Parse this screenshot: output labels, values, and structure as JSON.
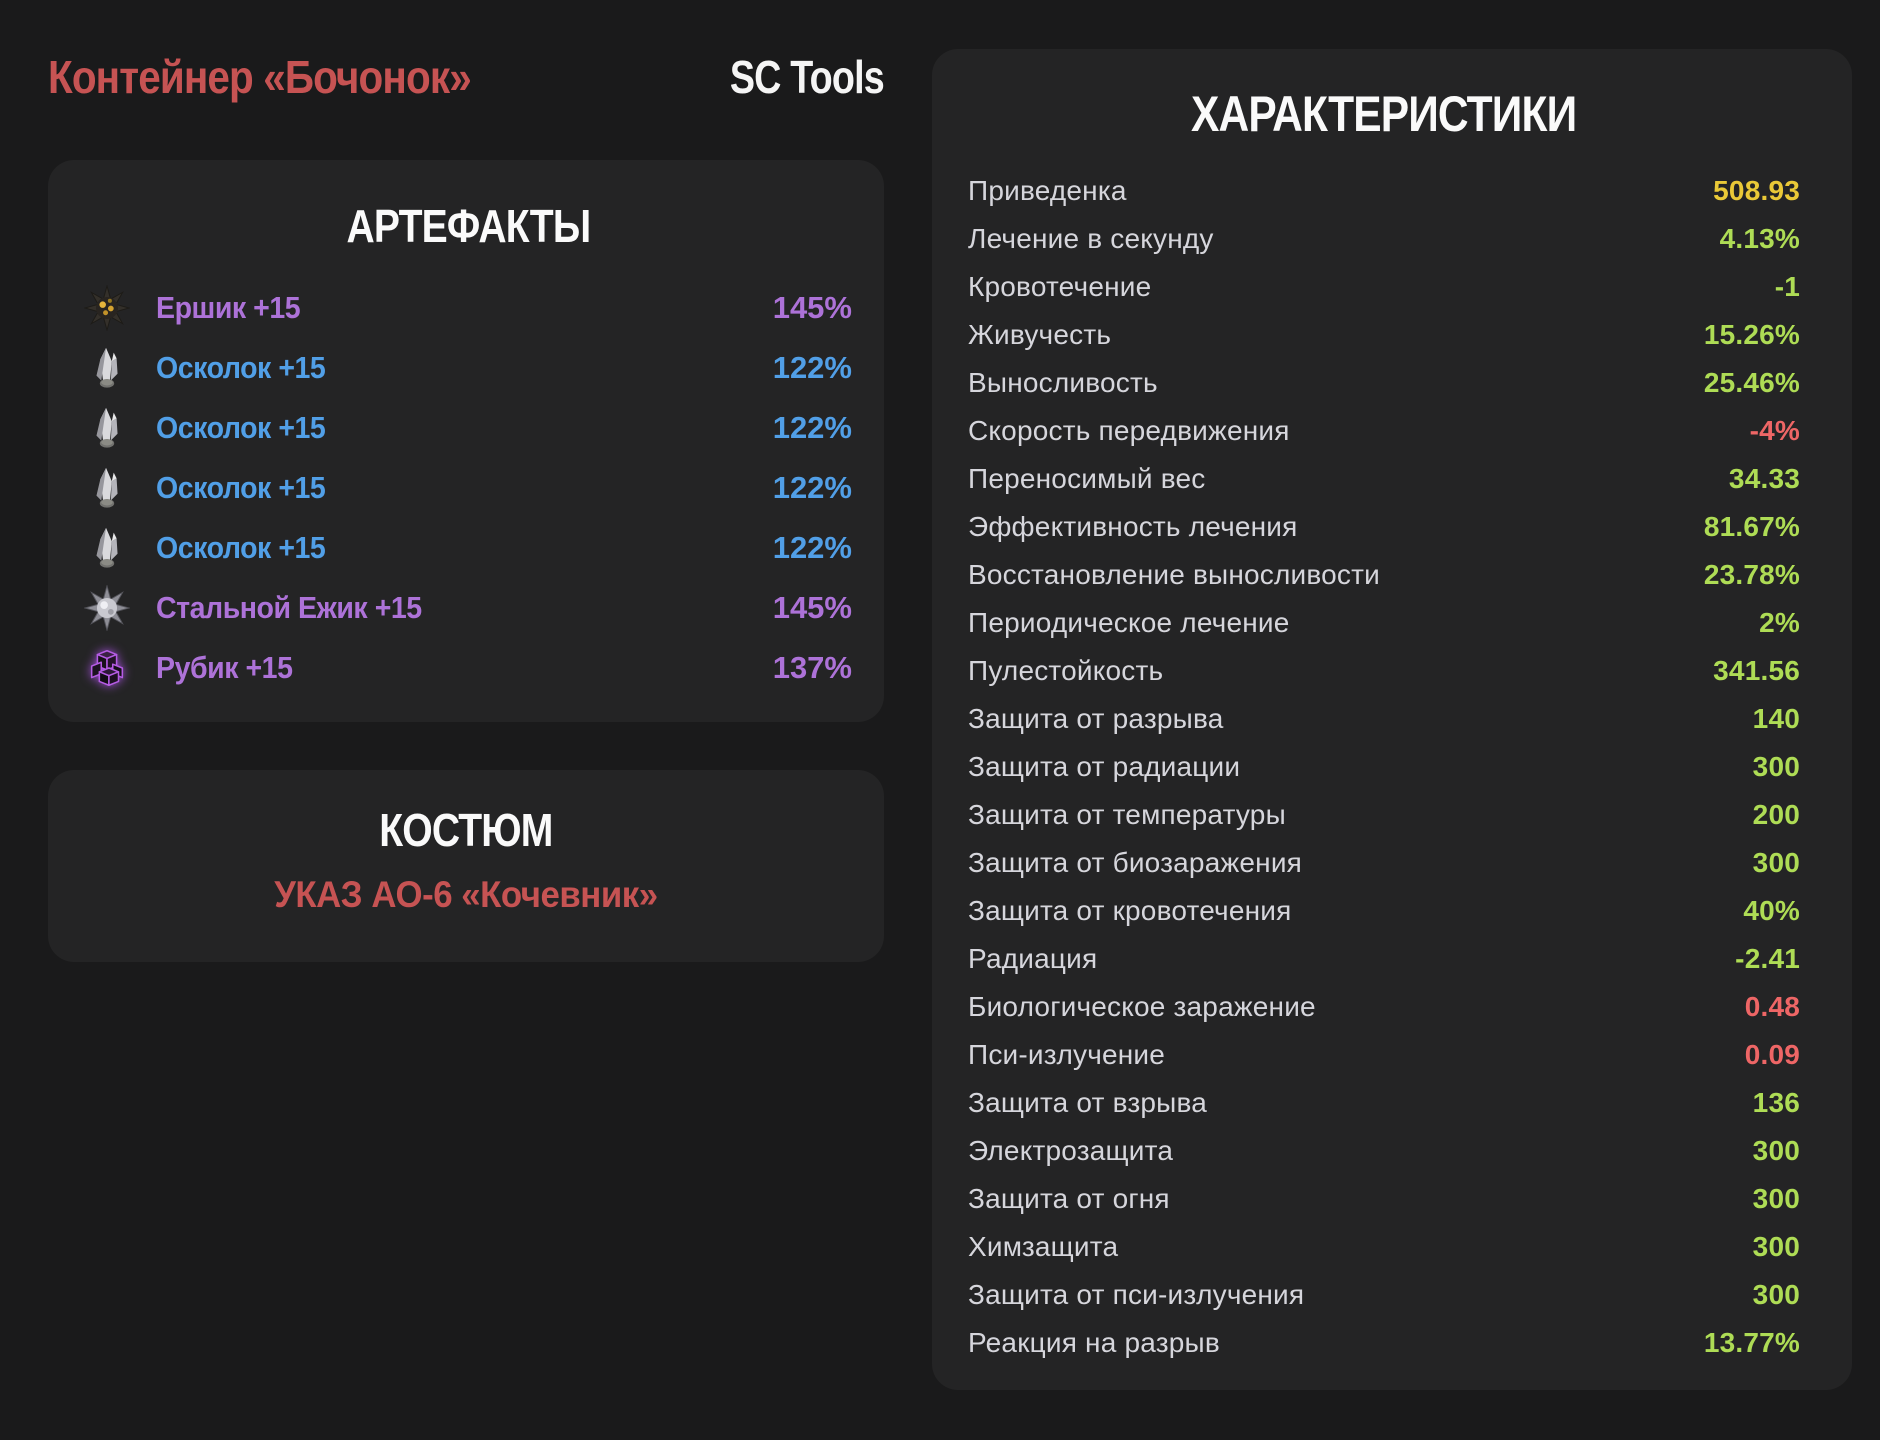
{
  "header": {
    "title": "Контейнер «Бочонок»",
    "brand": "SC Tools"
  },
  "artifacts_panel": {
    "title": "АРТЕФАКТЫ",
    "items": [
      {
        "name": "Ершик +15",
        "value": "145%",
        "rarity": "purple",
        "icon": "ershik"
      },
      {
        "name": "Осколок +15",
        "value": "122%",
        "rarity": "blue",
        "icon": "oskolok"
      },
      {
        "name": "Осколок +15",
        "value": "122%",
        "rarity": "blue",
        "icon": "oskolok"
      },
      {
        "name": "Осколок +15",
        "value": "122%",
        "rarity": "blue",
        "icon": "oskolok"
      },
      {
        "name": "Осколок +15",
        "value": "122%",
        "rarity": "blue",
        "icon": "oskolok"
      },
      {
        "name": "Стальной Ежик +15",
        "value": "145%",
        "rarity": "purple",
        "icon": "steel-hedgehog"
      },
      {
        "name": "Рубик +15",
        "value": "137%",
        "rarity": "purple",
        "icon": "rubik"
      }
    ]
  },
  "suit_panel": {
    "title": "КОСТЮМ",
    "name": "УКАЗ АО-6 «Кочевник»"
  },
  "stats_panel": {
    "title": "ХАРАКТЕРИСТИКИ",
    "rows": [
      {
        "label": "Приведенка",
        "value": "508.93",
        "color": "gold"
      },
      {
        "label": "Лечение в секунду",
        "value": "4.13%",
        "color": "green"
      },
      {
        "label": "Кровотечение",
        "value": "-1",
        "color": "green"
      },
      {
        "label": "Живучесть",
        "value": "15.26%",
        "color": "green"
      },
      {
        "label": "Выносливость",
        "value": "25.46%",
        "color": "green"
      },
      {
        "label": "Скорость передвижения",
        "value": "-4%",
        "color": "red"
      },
      {
        "label": "Переносимый вес",
        "value": "34.33",
        "color": "green"
      },
      {
        "label": "Эффективность лечения",
        "value": "81.67%",
        "color": "green"
      },
      {
        "label": "Восстановление выносливости",
        "value": "23.78%",
        "color": "green"
      },
      {
        "label": "Периодическое лечение",
        "value": "2%",
        "color": "green"
      },
      {
        "label": "Пулестойкость",
        "value": "341.56",
        "color": "green"
      },
      {
        "label": "Защита от разрыва",
        "value": "140",
        "color": "green"
      },
      {
        "label": "Защита от радиации",
        "value": "300",
        "color": "green"
      },
      {
        "label": "Защита от температуры",
        "value": "200",
        "color": "green"
      },
      {
        "label": "Защита от биозаражения",
        "value": "300",
        "color": "green"
      },
      {
        "label": "Защита от кровотечения",
        "value": "40%",
        "color": "green"
      },
      {
        "label": "Радиация",
        "value": "-2.41",
        "color": "green"
      },
      {
        "label": "Биологическое заражение",
        "value": "0.48",
        "color": "red"
      },
      {
        "label": "Пси-излучение",
        "value": "0.09",
        "color": "red"
      },
      {
        "label": "Защита от взрыва",
        "value": "136",
        "color": "green"
      },
      {
        "label": "Электрозащита",
        "value": "300",
        "color": "green"
      },
      {
        "label": "Защита от огня",
        "value": "300",
        "color": "green"
      },
      {
        "label": "Химзащита",
        "value": "300",
        "color": "green"
      },
      {
        "label": "Защита от пси-излучения",
        "value": "300",
        "color": "green"
      },
      {
        "label": "Реакция на разрыв",
        "value": "13.77%",
        "color": "green"
      }
    ]
  },
  "colors": {
    "page_background": "#1a1a1b",
    "panel_background": "#242425",
    "accent_red": "#c65353",
    "value_gold": "#eac937",
    "value_green": "#aedc55",
    "value_red": "#ee6666",
    "artifact_purple": "#ad72d8",
    "artifact_blue": "#519fe7",
    "label_gray": "#d6d6dc",
    "heading_white": "#fafafa"
  }
}
